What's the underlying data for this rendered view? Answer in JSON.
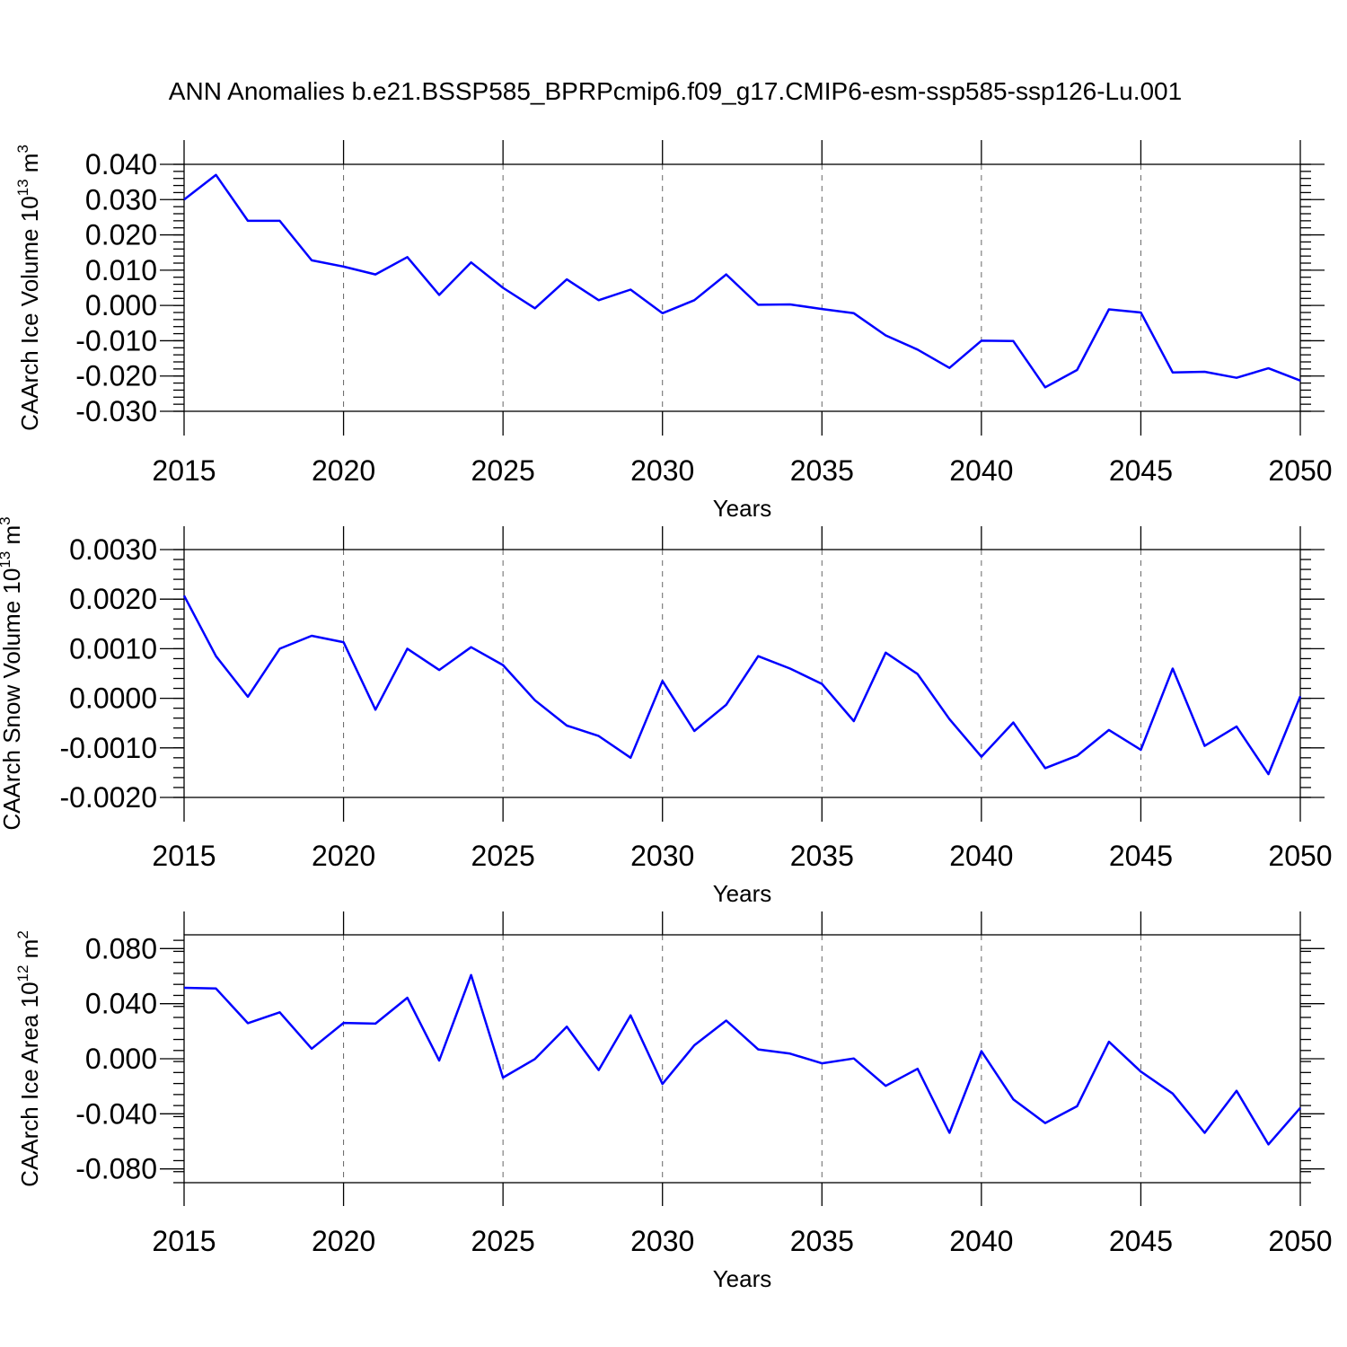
{
  "title": "ANN Anomalies b.e21.BSSP585_BPRPcmip6.f09_g17.CMIP6-esm-ssp585-ssp126-Lu.001",
  "colors": {
    "series": "#0000ff",
    "axis": "#000000",
    "grid": "#666666"
  },
  "chart_data": [
    {
      "type": "line",
      "title": "",
      "xlabel": "Years",
      "ylabel": "CAArch Ice Volume 10",
      "ylabel_exp": "13",
      "ylabel_unit": " m",
      "ylabel_unit_exp": "3",
      "xlim": [
        2015,
        2050
      ],
      "ylim": [
        -0.03,
        0.04
      ],
      "grid": true,
      "xticks": [
        2015,
        2020,
        2025,
        2030,
        2035,
        2040,
        2045,
        2050
      ],
      "xtick_labels": [
        "2015",
        "2020",
        "2025",
        "2030",
        "2035",
        "2040",
        "2045",
        "2050"
      ],
      "yticks": [
        -0.03,
        -0.02,
        -0.01,
        0.0,
        0.01,
        0.02,
        0.03,
        0.04
      ],
      "ytick_labels": [
        "-0.030",
        "-0.020",
        "-0.010",
        "0.000",
        "0.010",
        "0.020",
        "0.030",
        "0.040"
      ],
      "x": [
        2015,
        2016,
        2017,
        2018,
        2019,
        2020,
        2021,
        2022,
        2023,
        2024,
        2025,
        2026,
        2027,
        2028,
        2029,
        2030,
        2031,
        2032,
        2033,
        2034,
        2035,
        2036,
        2037,
        2038,
        2039,
        2040,
        2041,
        2042,
        2043,
        2044,
        2045,
        2046,
        2047,
        2048,
        2049,
        2050
      ],
      "values": [
        0.03,
        0.037,
        0.024,
        0.024,
        0.0128,
        0.011,
        0.0088,
        0.0137,
        0.003,
        0.0122,
        0.005,
        -0.0008,
        0.0074,
        0.0015,
        0.0045,
        -0.0022,
        0.0015,
        0.0088,
        0.0002,
        0.0003,
        -0.001,
        -0.0022,
        -0.0085,
        -0.0125,
        -0.0177,
        -0.01,
        -0.0101,
        -0.0232,
        -0.0183,
        -0.0011,
        -0.002,
        -0.019,
        -0.0188,
        -0.0205,
        -0.0178,
        -0.0213
      ],
      "series_name": ""
    },
    {
      "type": "line",
      "title": "",
      "xlabel": "Years",
      "ylabel": "CAArch Snow Volume 10",
      "ylabel_exp": "13",
      "ylabel_unit": " m",
      "ylabel_unit_exp": "3",
      "xlim": [
        2015,
        2050
      ],
      "ylim": [
        -0.002,
        0.003
      ],
      "grid": true,
      "xticks": [
        2015,
        2020,
        2025,
        2030,
        2035,
        2040,
        2045,
        2050
      ],
      "xtick_labels": [
        "2015",
        "2020",
        "2025",
        "2030",
        "2035",
        "2040",
        "2045",
        "2050"
      ],
      "yticks": [
        -0.002,
        -0.001,
        0.0,
        0.001,
        0.002,
        0.003
      ],
      "ytick_labels": [
        "-0.0020",
        "-0.0010",
        "0.0000",
        "0.0010",
        "0.0020",
        "0.0030"
      ],
      "x": [
        2015,
        2016,
        2017,
        2018,
        2019,
        2020,
        2021,
        2022,
        2023,
        2024,
        2025,
        2026,
        2027,
        2028,
        2029,
        2030,
        2031,
        2032,
        2033,
        2034,
        2035,
        2036,
        2037,
        2038,
        2039,
        2040,
        2041,
        2042,
        2043,
        2044,
        2045,
        2046,
        2047,
        2048,
        2049,
        2050
      ],
      "values": [
        0.00207,
        0.00085,
        3e-05,
        0.001,
        0.00126,
        0.00113,
        -0.00023,
        0.001,
        0.00057,
        0.00103,
        0.00067,
        -4e-05,
        -0.00055,
        -0.00076,
        -0.0012,
        0.00035,
        -0.00066,
        -0.00013,
        0.00085,
        0.0006,
        0.00029,
        -0.00046,
        0.00092,
        0.00049,
        -0.00042,
        -0.00118,
        -0.00049,
        -0.00141,
        -0.00116,
        -0.00064,
        -0.00104,
        0.0006,
        -0.00096,
        -0.00057,
        -0.00153,
        4e-05
      ],
      "series_name": ""
    },
    {
      "type": "line",
      "title": "",
      "xlabel": "Years",
      "ylabel": "CAArch Ice Area 10",
      "ylabel_exp": "12",
      "ylabel_unit": " m",
      "ylabel_unit_exp": "2",
      "xlim": [
        2015,
        2050
      ],
      "ylim": [
        -0.09,
        0.09
      ],
      "grid": true,
      "xticks": [
        2015,
        2020,
        2025,
        2030,
        2035,
        2040,
        2045,
        2050
      ],
      "xtick_labels": [
        "2015",
        "2020",
        "2025",
        "2030",
        "2035",
        "2040",
        "2045",
        "2050"
      ],
      "yticks": [
        -0.08,
        -0.04,
        0.0,
        0.04,
        0.08
      ],
      "ytick_labels": [
        "-0.080",
        "-0.040",
        "0.000",
        "0.040",
        "0.080"
      ],
      "x": [
        2015,
        2016,
        2017,
        2018,
        2019,
        2020,
        2021,
        2022,
        2023,
        2024,
        2025,
        2026,
        2027,
        2028,
        2029,
        2030,
        2031,
        2032,
        2033,
        2034,
        2035,
        2036,
        2037,
        2038,
        2039,
        2040,
        2041,
        2042,
        2043,
        2044,
        2045,
        2046,
        2047,
        2048,
        2049,
        2050
      ],
      "values": [
        0.0515,
        0.051,
        0.0258,
        0.0337,
        0.0073,
        0.026,
        0.0255,
        0.0443,
        -0.0013,
        0.0608,
        -0.0137,
        -0.0002,
        0.0233,
        -0.0082,
        0.0315,
        -0.0183,
        0.0098,
        0.0277,
        0.0068,
        0.0037,
        -0.0033,
        0.0002,
        -0.0197,
        -0.0073,
        -0.0538,
        0.0055,
        -0.0295,
        -0.0467,
        -0.0345,
        0.0123,
        -0.0093,
        -0.0253,
        -0.0538,
        -0.0233,
        -0.0622,
        -0.0357
      ],
      "series_name": ""
    }
  ]
}
